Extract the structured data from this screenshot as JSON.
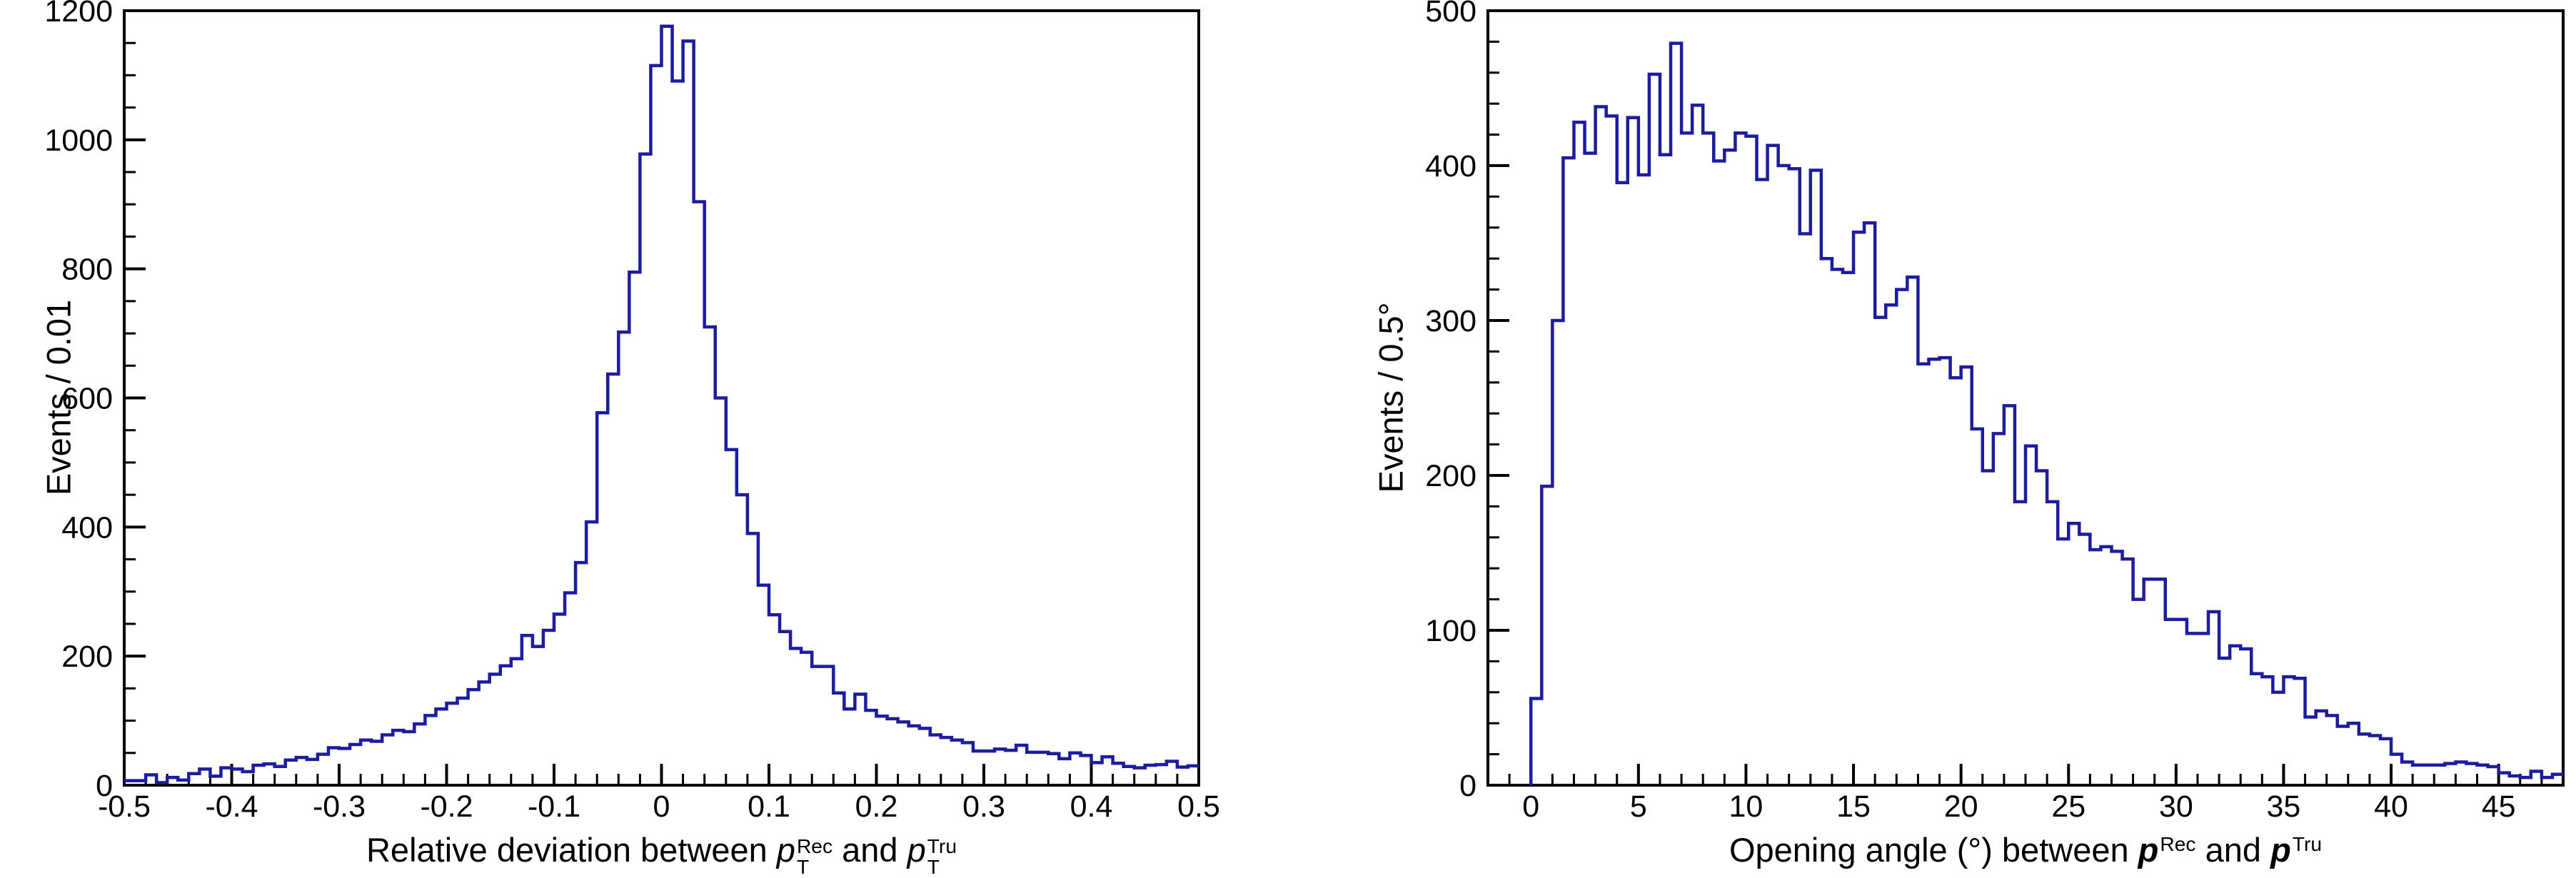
{
  "figure": {
    "background": "#ffffff",
    "axis_color": "#000000",
    "tick_label_color": "#000000"
  },
  "chart_data": [
    {
      "id": "pt-relative-deviation",
      "type": "histogram-step",
      "title": "",
      "ylabel": "Events / 0.01",
      "xlabel_segments": [
        {
          "text": "Relative deviation between "
        },
        {
          "text": "p",
          "italic": true,
          "sup": "Rec",
          "sub": "T"
        },
        {
          "text": " and "
        },
        {
          "text": "p",
          "italic": true,
          "sup": "Tru",
          "sub": "T"
        }
      ],
      "line_color": "#1c1c9e",
      "xlim": [
        -0.5,
        0.5
      ],
      "ylim": [
        0,
        1200
      ],
      "grid": false,
      "legend": null,
      "x_ticks": [
        {
          "v": -0.5,
          "label": "-0.5"
        },
        {
          "v": -0.4,
          "label": "-0.4"
        },
        {
          "v": -0.3,
          "label": "-0.3"
        },
        {
          "v": -0.2,
          "label": "-0.2"
        },
        {
          "v": -0.1,
          "label": "-0.1"
        },
        {
          "v": 0,
          "label": "0"
        },
        {
          "v": 0.1,
          "label": "0.1"
        },
        {
          "v": 0.2,
          "label": "0.2"
        },
        {
          "v": 0.3,
          "label": "0.3"
        },
        {
          "v": 0.4,
          "label": "0.4"
        },
        {
          "v": 0.5,
          "label": "0.5"
        }
      ],
      "x_minor_step": 0.02,
      "y_ticks": [
        {
          "v": 0,
          "label": "0"
        },
        {
          "v": 200,
          "label": "200"
        },
        {
          "v": 400,
          "label": "400"
        },
        {
          "v": 600,
          "label": "600"
        },
        {
          "v": 800,
          "label": "800"
        },
        {
          "v": 1000,
          "label": "1000"
        },
        {
          "v": 1200,
          "label": "1200"
        }
      ],
      "y_minor_step": 50,
      "bins": {
        "start": -0.5,
        "width": 0.01,
        "values": [
          7,
          7,
          16,
          4,
          12,
          8,
          18,
          25,
          14,
          27,
          25,
          21,
          31,
          33,
          29,
          39,
          43,
          40,
          48,
          58,
          57,
          63,
          70,
          68,
          78,
          85,
          83,
          95,
          108,
          118,
          127,
          135,
          148,
          160,
          172,
          185,
          196,
          232,
          215,
          240,
          265,
          298,
          345,
          408,
          577,
          637,
          702,
          795,
          978,
          1115,
          1176,
          1091,
          1153,
          904,
          710,
          600,
          520,
          450,
          390,
          310,
          264,
          238,
          212,
          206,
          184,
          184,
          143,
          118,
          141,
          116,
          107,
          103,
          98,
          92,
          88,
          78,
          74,
          70,
          66,
          53,
          53,
          56,
          54,
          62,
          51,
          51,
          49,
          41,
          50,
          46,
          35,
          44,
          34,
          29,
          27,
          31,
          32,
          37,
          28,
          30
        ]
      }
    },
    {
      "id": "opening-angle",
      "type": "histogram-step",
      "title": "",
      "ylabel": "Events / 0.5°",
      "xlabel_segments": [
        {
          "text": "Opening angle (°) between "
        },
        {
          "text": "p",
          "italic": true,
          "bold": true,
          "sup": "Rec"
        },
        {
          "text": " and "
        },
        {
          "text": "p",
          "italic": true,
          "bold": true,
          "sup": "Tru"
        }
      ],
      "line_color": "#1c1c9e",
      "xlim": [
        -2,
        48
      ],
      "ylim": [
        0,
        500
      ],
      "grid": false,
      "legend": null,
      "x_ticks": [
        {
          "v": 0,
          "label": "0"
        },
        {
          "v": 5,
          "label": "5"
        },
        {
          "v": 10,
          "label": "10"
        },
        {
          "v": 15,
          "label": "15"
        },
        {
          "v": 20,
          "label": "20"
        },
        {
          "v": 25,
          "label": "25"
        },
        {
          "v": 30,
          "label": "30"
        },
        {
          "v": 35,
          "label": "35"
        },
        {
          "v": 40,
          "label": "40"
        },
        {
          "v": 45,
          "label": "45"
        }
      ],
      "x_minor_step": 1,
      "y_ticks": [
        {
          "v": 0,
          "label": "0"
        },
        {
          "v": 100,
          "label": "100"
        },
        {
          "v": 200,
          "label": "200"
        },
        {
          "v": 300,
          "label": "300"
        },
        {
          "v": 400,
          "label": "400"
        },
        {
          "v": 500,
          "label": "500"
        }
      ],
      "y_minor_step": 20,
      "bins": {
        "start": 0,
        "width": 0.5,
        "values": [
          56,
          193,
          300,
          405,
          428,
          408,
          438,
          432,
          389,
          431,
          394,
          459,
          407,
          479,
          421,
          439,
          421,
          403,
          410,
          421,
          419,
          391,
          413,
          400,
          398,
          356,
          397,
          340,
          333,
          331,
          357,
          363,
          302,
          310,
          320,
          328,
          272,
          275,
          276,
          263,
          270,
          230,
          203,
          227,
          245,
          183,
          219,
          203,
          183,
          159,
          169,
          162,
          152,
          154,
          151,
          146,
          120,
          133,
          133,
          107,
          107,
          98,
          98,
          112,
          82,
          90,
          88,
          72,
          70,
          60,
          70,
          69,
          44,
          48,
          45,
          38,
          40,
          33,
          32,
          30,
          20,
          15,
          13,
          13,
          13,
          14,
          15,
          14,
          13,
          12,
          8,
          6,
          5,
          9,
          5,
          7
        ]
      }
    }
  ]
}
